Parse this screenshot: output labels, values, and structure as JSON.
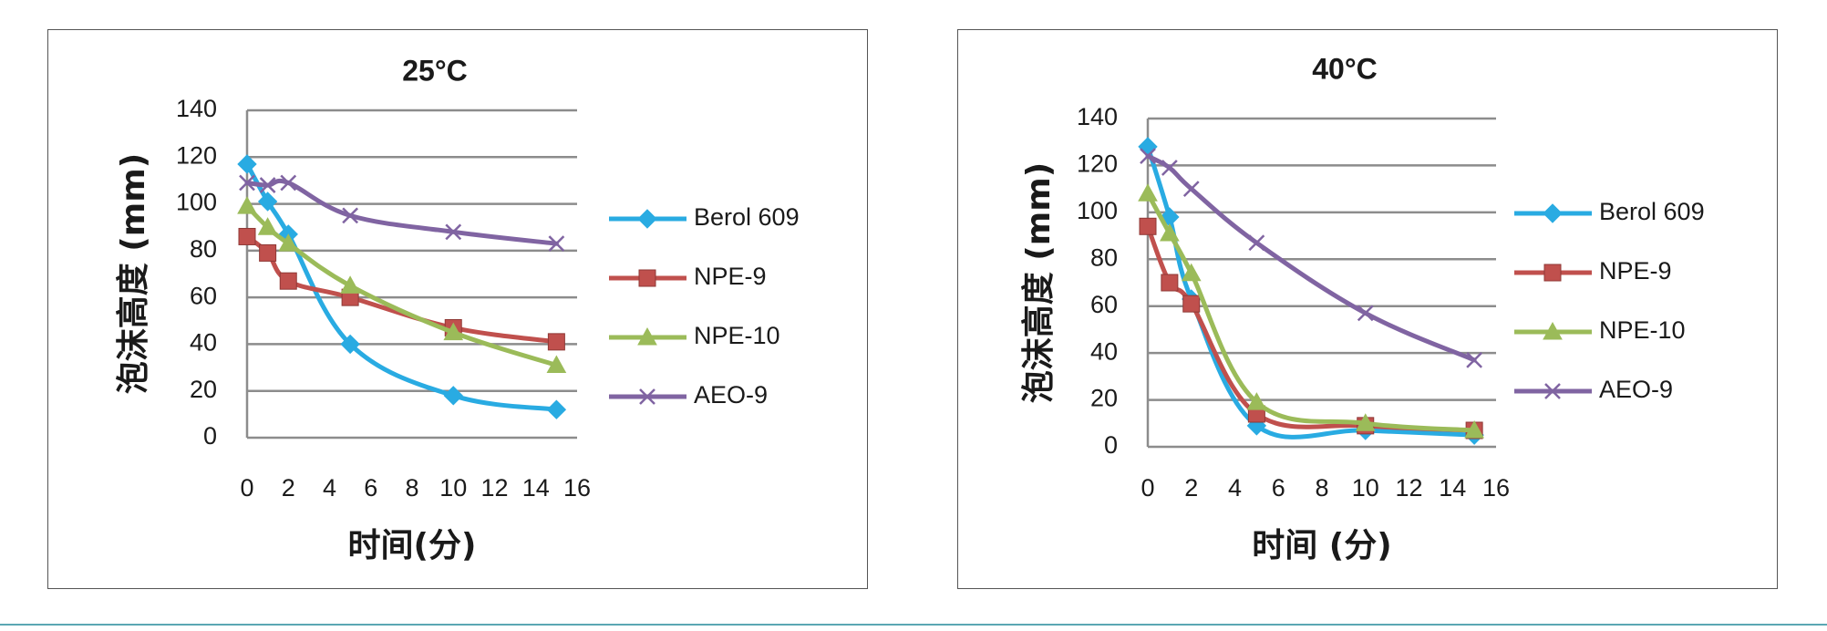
{
  "chart_data": [
    {
      "type": "line",
      "title": "25°C",
      "xlabel": "时间(分)",
      "ylabel": "泡沫高度 (mm)",
      "xlim": [
        0,
        16
      ],
      "ylim": [
        0,
        140
      ],
      "xticks": [
        0,
        2,
        4,
        6,
        8,
        10,
        12,
        14,
        16
      ],
      "yticks": [
        0,
        20,
        40,
        60,
        80,
        100,
        120,
        140
      ],
      "grid": "horizontal",
      "legend": "right",
      "series": [
        {
          "name": "Berol 609",
          "color": "#29ABE2",
          "marker": "diamond",
          "x": [
            0,
            1,
            2,
            5,
            10,
            15
          ],
          "y": [
            117,
            101,
            87,
            40,
            18,
            12
          ]
        },
        {
          "name": "NPE-9",
          "color": "#C0504D",
          "marker": "square",
          "x": [
            0,
            1,
            2,
            5,
            10,
            15
          ],
          "y": [
            86,
            79,
            67,
            60,
            47,
            41
          ]
        },
        {
          "name": "NPE-10",
          "color": "#9BBB59",
          "marker": "triangle",
          "x": [
            0,
            1,
            2,
            5,
            10,
            15
          ],
          "y": [
            99,
            90,
            83,
            65,
            45,
            31
          ]
        },
        {
          "name": "AEO-9",
          "color": "#8064A2",
          "marker": "x",
          "x": [
            0,
            1,
            2,
            5,
            10,
            15
          ],
          "y": [
            109,
            108,
            109,
            95,
            88,
            83
          ]
        }
      ]
    },
    {
      "type": "line",
      "title": "40°C",
      "xlabel": "时间 (分)",
      "ylabel": "泡沫高度 (mm)",
      "xlim": [
        0,
        16
      ],
      "ylim": [
        0,
        140
      ],
      "xticks": [
        0,
        2,
        4,
        6,
        8,
        10,
        12,
        14,
        16
      ],
      "yticks": [
        0,
        20,
        40,
        60,
        80,
        100,
        120,
        140
      ],
      "grid": "horizontal",
      "legend": "right",
      "series": [
        {
          "name": "Berol 609",
          "color": "#29ABE2",
          "marker": "diamond",
          "x": [
            0,
            1,
            2,
            5,
            10,
            15
          ],
          "y": [
            128,
            98,
            63,
            9,
            7,
            5
          ]
        },
        {
          "name": "NPE-9",
          "color": "#C0504D",
          "marker": "square",
          "x": [
            0,
            1,
            2,
            5,
            10,
            15
          ],
          "y": [
            94,
            70,
            61,
            14,
            9,
            7
          ]
        },
        {
          "name": "NPE-10",
          "color": "#9BBB59",
          "marker": "triangle",
          "x": [
            0,
            1,
            2,
            5,
            10,
            15
          ],
          "y": [
            108,
            91,
            74,
            19,
            10,
            7
          ]
        },
        {
          "name": "AEO-9",
          "color": "#8064A2",
          "marker": "x",
          "x": [
            0,
            1,
            2,
            5,
            10,
            15
          ],
          "y": [
            124,
            119,
            110,
            87,
            57,
            37
          ]
        }
      ]
    }
  ]
}
